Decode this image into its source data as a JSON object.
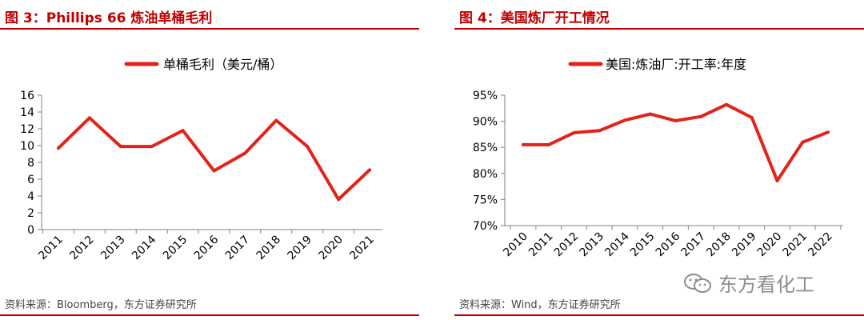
{
  "figures": [
    {
      "title": "图 3：Phillips 66 炼油单桶毛利",
      "source": "资料来源：Bloomberg，东方证券研究所"
    },
    {
      "title": "图 4：美国炼厂开工情况",
      "source": "资料来源：Wind，东方证券研究所",
      "watermark": "东方看化工"
    }
  ],
  "colors": {
    "accent": "#c00000",
    "series": "#e2231a",
    "axis": "#808080"
  },
  "chart_data": [
    {
      "type": "line",
      "title": "图 3：Phillips 66 炼油单桶毛利",
      "categories": [
        "2011",
        "2012",
        "2013",
        "2014",
        "2015",
        "2016",
        "2017",
        "2018",
        "2019",
        "2020",
        "2021"
      ],
      "series": [
        {
          "name": "单桶毛利（美元/桶）",
          "values": [
            9.7,
            13.3,
            9.9,
            9.9,
            11.8,
            7.0,
            9.1,
            13.0,
            9.9,
            3.6,
            7.1
          ]
        }
      ],
      "ylim": [
        0,
        16
      ],
      "yticks": [
        "0",
        "2",
        "4",
        "6",
        "8",
        "10",
        "12",
        "14",
        "16"
      ],
      "legend": "top-center",
      "grid": false
    },
    {
      "type": "line",
      "title": "图 4：美国炼厂开工情况",
      "categories": [
        "2010",
        "2011",
        "2012",
        "2013",
        "2014",
        "2015",
        "2016",
        "2017",
        "2018",
        "2019",
        "2020",
        "2021",
        "2022"
      ],
      "series": [
        {
          "name": "美国:炼油厂:开工率:年度",
          "values": [
            85.5,
            85.5,
            87.8,
            88.2,
            90.2,
            91.4,
            90.1,
            90.9,
            93.2,
            90.7,
            78.6,
            86.0,
            87.9
          ]
        }
      ],
      "ylim": [
        70,
        95
      ],
      "yticks": [
        "70%",
        "75%",
        "80%",
        "85%",
        "90%",
        "95%"
      ],
      "legend": "top-center",
      "grid": false
    }
  ]
}
